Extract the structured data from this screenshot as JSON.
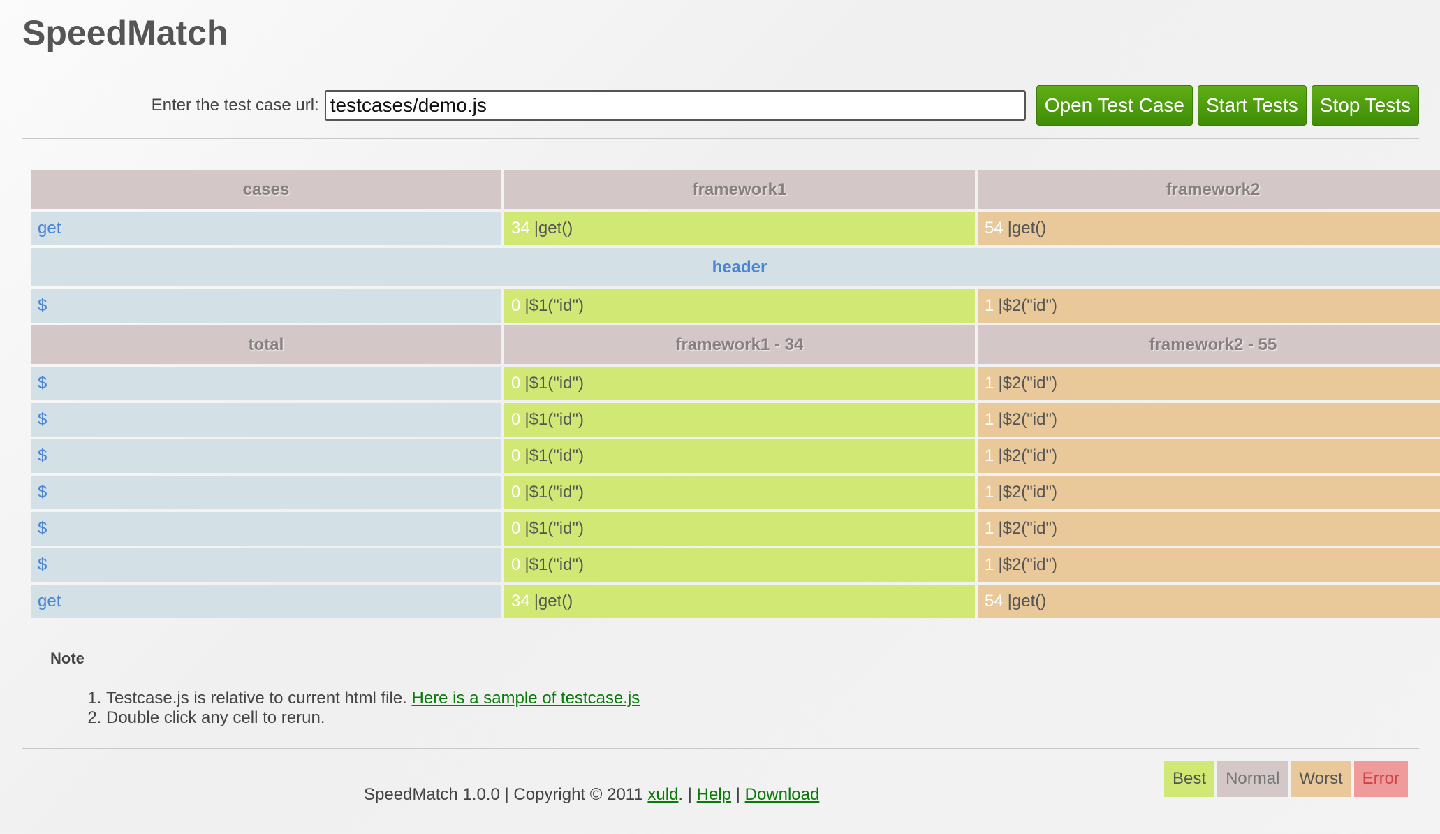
{
  "app": {
    "title": "SpeedMatch"
  },
  "toolbar": {
    "url_label": "Enter the test case url:",
    "url_value": "testcases/demo.js",
    "open_label": "Open Test Case",
    "start_label": "Start Tests",
    "stop_label": "Stop Tests"
  },
  "table": {
    "headers": [
      "cases",
      "framework1",
      "framework2"
    ],
    "first_row": {
      "case": "get",
      "fw1_num": "34",
      "fw1_call": "|get()",
      "fw2_num": "54",
      "fw2_call": "|get()"
    },
    "group_label": "header",
    "group_row": {
      "case": "$",
      "fw1_num": "0",
      "fw1_call": "|$1(\"id\")",
      "fw2_num": "1",
      "fw2_call": "|$2(\"id\")"
    },
    "total_headers": [
      "total",
      "framework1 - 34",
      "framework2 - 55"
    ],
    "total_rows": [
      {
        "case": "$",
        "fw1_num": "0",
        "fw1_call": "|$1(\"id\")",
        "fw2_num": "1",
        "fw2_call": "|$2(\"id\")"
      },
      {
        "case": "$",
        "fw1_num": "0",
        "fw1_call": "|$1(\"id\")",
        "fw2_num": "1",
        "fw2_call": "|$2(\"id\")"
      },
      {
        "case": "$",
        "fw1_num": "0",
        "fw1_call": "|$1(\"id\")",
        "fw2_num": "1",
        "fw2_call": "|$2(\"id\")"
      },
      {
        "case": "$",
        "fw1_num": "0",
        "fw1_call": "|$1(\"id\")",
        "fw2_num": "1",
        "fw2_call": "|$2(\"id\")"
      },
      {
        "case": "$",
        "fw1_num": "0",
        "fw1_call": "|$1(\"id\")",
        "fw2_num": "1",
        "fw2_call": "|$2(\"id\")"
      },
      {
        "case": "$",
        "fw1_num": "0",
        "fw1_call": "|$1(\"id\")",
        "fw2_num": "1",
        "fw2_call": "|$2(\"id\")"
      },
      {
        "case": "get",
        "fw1_num": "34",
        "fw1_call": "|get()",
        "fw2_num": "54",
        "fw2_call": "|get()"
      }
    ]
  },
  "note": {
    "title": "Note",
    "item1_text": "Testcase.js is relative to current html file. ",
    "item1_link": "Here is a sample of testcase.js",
    "item2_text": "Double click any cell to rerun."
  },
  "legend": {
    "best": "Best",
    "normal": "Normal",
    "worst": "Worst",
    "error": "Error"
  },
  "footer": {
    "prefix": "SpeedMatch 1.0.0 | Copyright © 2011 ",
    "author_link": "xuld",
    "sep1": ". | ",
    "help_link": "Help",
    "sep2": " | ",
    "download_link": "Download"
  }
}
